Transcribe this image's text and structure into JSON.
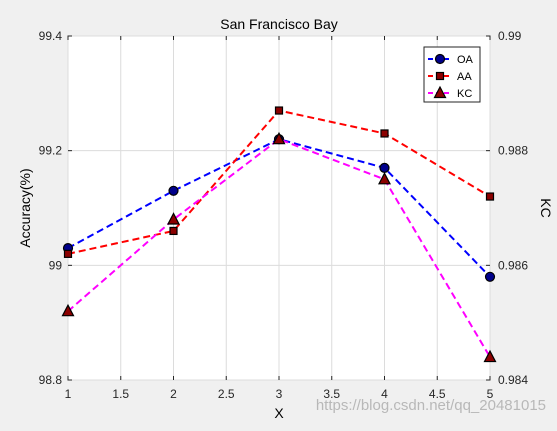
{
  "chart_data": {
    "type": "line",
    "title": "San Francisco Bay",
    "xlabel": "X",
    "ylabel": "Accuracy(%)",
    "ylabel_right": "KC",
    "x": [
      1,
      2,
      3,
      4,
      5
    ],
    "xlim": [
      1,
      5
    ],
    "xticks": [
      "1",
      "1.5",
      "2",
      "2.5",
      "3",
      "3.5",
      "4",
      "4.5",
      "5"
    ],
    "ylim": [
      98.8,
      99.4
    ],
    "yticks": [
      "98.8",
      "99",
      "99.2",
      "99.4"
    ],
    "ylim_right": [
      0.984,
      0.99
    ],
    "yticks_right": [
      "0.984",
      "0.986",
      "0.988",
      "0.99"
    ],
    "grid": true,
    "legend_position": "top-right",
    "series": [
      {
        "name": "OA",
        "axis": "left",
        "values": [
          99.03,
          99.13,
          99.22,
          99.17,
          98.98
        ],
        "color": "#0000ff",
        "marker": "circle",
        "marker_fill": "#00008b"
      },
      {
        "name": "AA",
        "axis": "left",
        "values": [
          99.02,
          99.06,
          99.27,
          99.23,
          99.12
        ],
        "color": "#ff0000",
        "marker": "square",
        "marker_fill": "#8b0000"
      },
      {
        "name": "KC",
        "axis": "right",
        "values": [
          0.9852,
          0.9868,
          0.9882,
          0.9875,
          0.9844
        ],
        "color": "#ff00ff",
        "marker": "triangle",
        "marker_fill": "#8b0000"
      }
    ]
  },
  "watermark": "https://blog.csdn.net/qq_20481015"
}
